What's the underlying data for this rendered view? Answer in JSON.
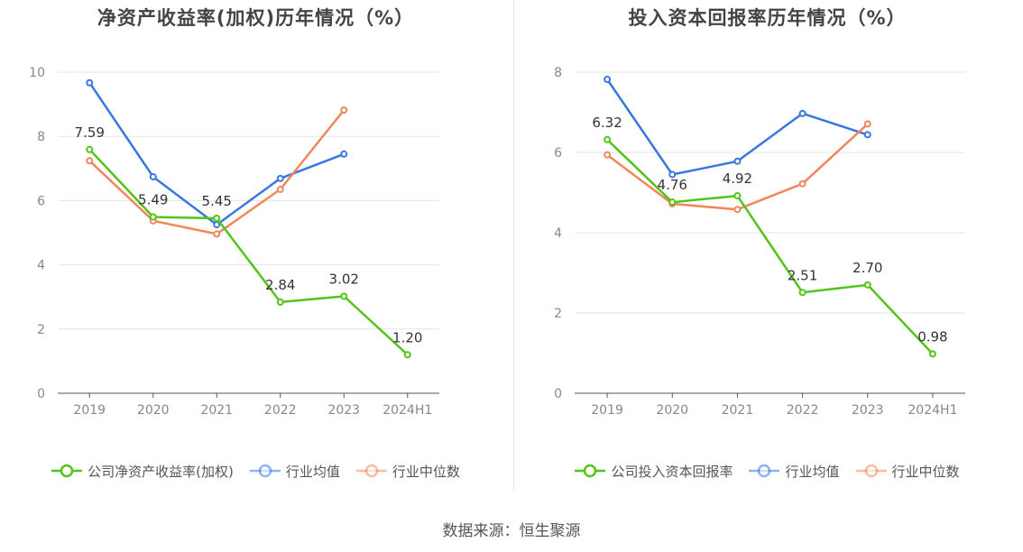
{
  "source": "数据来源：恒生聚源",
  "chart_data": [
    {
      "type": "line",
      "title": "净资产收益率(加权)历年情况（%）",
      "categories": [
        "2019",
        "2020",
        "2021",
        "2022",
        "2023",
        "2024H1"
      ],
      "ylim": [
        0,
        10
      ],
      "yticks": [
        0,
        2,
        4,
        6,
        8,
        10
      ],
      "grid": true,
      "legend_position": "bottom",
      "series": [
        {
          "name": "公司净资产收益率(加权)",
          "color": "#52c41a",
          "values": [
            7.59,
            5.49,
            5.45,
            2.84,
            3.02,
            1.2
          ],
          "labels": [
            "7.59",
            "5.49",
            "5.45",
            "2.84",
            "3.02",
            "1.20"
          ]
        },
        {
          "name": "行业均值",
          "color": "#3a76e0",
          "values": [
            9.67,
            6.74,
            5.25,
            6.69,
            7.45,
            null
          ]
        },
        {
          "name": "行业中位数",
          "color": "#f0875a",
          "values": [
            7.24,
            5.37,
            4.96,
            6.35,
            8.82,
            null
          ]
        }
      ]
    },
    {
      "type": "line",
      "title": "投入资本回报率历年情况（%）",
      "categories": [
        "2019",
        "2020",
        "2021",
        "2022",
        "2023",
        "2024H1"
      ],
      "ylim": [
        0,
        8
      ],
      "yticks": [
        0,
        2,
        4,
        6,
        8
      ],
      "grid": true,
      "legend_position": "bottom",
      "series": [
        {
          "name": "公司投入资本回报率",
          "color": "#52c41a",
          "values": [
            6.32,
            4.76,
            4.92,
            2.51,
            2.7,
            0.98
          ],
          "labels": [
            "6.32",
            "4.76",
            "4.92",
            "2.51",
            "2.70",
            "0.98"
          ]
        },
        {
          "name": "行业均值",
          "color": "#3a76e0",
          "values": [
            7.82,
            5.45,
            5.78,
            6.97,
            6.44,
            null
          ]
        },
        {
          "name": "行业中位数",
          "color": "#f0875a",
          "values": [
            5.94,
            4.72,
            4.58,
            5.22,
            6.71,
            null
          ]
        }
      ]
    }
  ]
}
